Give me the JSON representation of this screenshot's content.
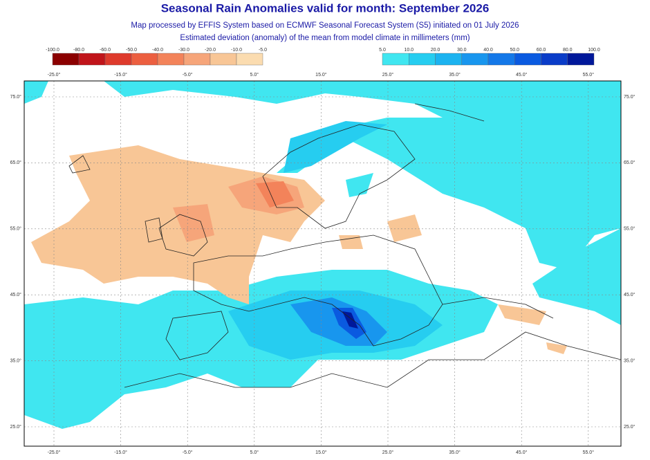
{
  "title": "Seasonal Rain Anomalies valid for month: September 2026",
  "subtitle": [
    "Map processed by EFFIS System based on ECMWF Seasonal Forecast System (S5) initiated on 01 July 2026",
    "Estimated deviation (anomaly) of the mean from model climate in millimeters (mm)"
  ],
  "legend_negative": {
    "labels": [
      "-100.0",
      "-80.0",
      "-60.0",
      "-50.0",
      "-40.0",
      "-30.0",
      "-20.0",
      "-10.0",
      "-5.0"
    ],
    "colors": [
      "#8b0000",
      "#c0141a",
      "#de3a2c",
      "#ec5f40",
      "#f3835a",
      "#f6a57a",
      "#f8c696",
      "#fbdcb0"
    ]
  },
  "legend_positive": {
    "labels": [
      "5.0",
      "10.0",
      "20.0",
      "30.0",
      "40.0",
      "50.0",
      "60.0",
      "80.0",
      "100.0"
    ],
    "colors": [
      "#40e6f0",
      "#26cdf0",
      "#1cb3f0",
      "#1896ee",
      "#1478e8",
      "#0a5ae0",
      "#0a3cc8",
      "#00189a"
    ]
  },
  "map": {
    "lon_labels": [
      "-25.0°",
      "-15.0°",
      "-5.0°",
      "5.0°",
      "15.0°",
      "25.0°",
      "35.0°",
      "45.0°",
      "55.0°"
    ],
    "lat_labels": [
      "75.0°",
      "65.0°",
      "55.0°",
      "45.0°",
      "35.0°",
      "25.0°"
    ]
  }
}
